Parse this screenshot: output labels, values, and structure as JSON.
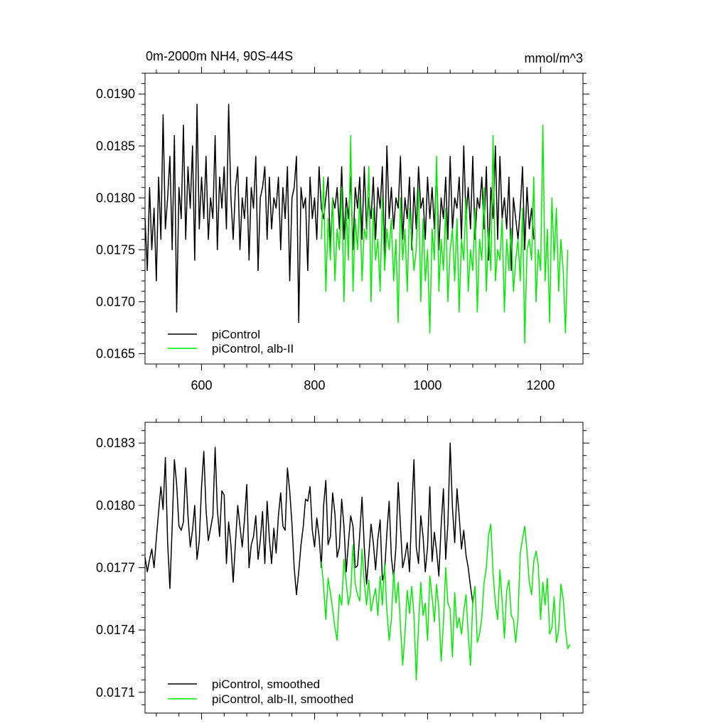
{
  "header": {
    "title": "0m-2000m NH4, 90S-44S",
    "units": "mmol/m^3"
  },
  "colors": {
    "piControl": "#000000",
    "albII": "#00ee00"
  },
  "chart_data": [
    {
      "type": "line",
      "xlim": [
        500,
        1275
      ],
      "ylim": [
        0.0164,
        0.0192
      ],
      "xticks": [
        600,
        800,
        1000,
        1200
      ],
      "xtick_labels": [
        "600",
        "800",
        "1000",
        "1200"
      ],
      "yticks": [
        0.0165,
        0.017,
        0.0175,
        0.018,
        0.0185,
        0.019
      ],
      "ytick_labels": [
        "0.0165",
        "0.0170",
        "0.0175",
        "0.0180",
        "0.0185",
        "0.0190"
      ],
      "legend": {
        "position": "bottom-left"
      },
      "series": [
        {
          "name": "piControl",
          "color": "#000000",
          "x_start": 500,
          "x_step": 4,
          "values": [
            0.0178,
            0.0173,
            0.0181,
            0.0175,
            0.0179,
            0.0172,
            0.0182,
            0.0176,
            0.0188,
            0.0177,
            0.018,
            0.0184,
            0.0175,
            0.0186,
            0.0169,
            0.0181,
            0.0178,
            0.0187,
            0.0176,
            0.0183,
            0.0179,
            0.0185,
            0.0174,
            0.0189,
            0.0177,
            0.0182,
            0.0178,
            0.0184,
            0.0176,
            0.018,
            0.0178,
            0.0186,
            0.0175,
            0.0182,
            0.0179,
            0.0183,
            0.0177,
            0.0189,
            0.018,
            0.0176,
            0.0181,
            0.0183,
            0.0175,
            0.018,
            0.0178,
            0.0182,
            0.0174,
            0.0181,
            0.0179,
            0.0184,
            0.0173,
            0.018,
            0.0181,
            0.0183,
            0.0176,
            0.0182,
            0.0177,
            0.018,
            0.0179,
            0.0182,
            0.0175,
            0.0181,
            0.0178,
            0.0183,
            0.0172,
            0.018,
            0.0181,
            0.0184,
            0.0168,
            0.0181,
            0.0179,
            0.018,
            0.0173,
            0.0182,
            0.0178,
            0.018,
            0.0176,
            0.0183,
            0.0179,
            0.0178,
            0.018,
            0.0182,
            0.0175,
            0.018,
            0.0179,
            0.0181,
            0.0177,
            0.0183,
            0.0176,
            0.018,
            0.0178,
            0.0182,
            0.0175,
            0.0181,
            0.0179,
            0.0182,
            0.0176,
            0.0183,
            0.0177,
            0.018,
            0.0178,
            0.0182,
            0.0176,
            0.0181,
            0.0179,
            0.0183,
            0.0174,
            0.0185,
            0.0178,
            0.0181,
            0.0177,
            0.018,
            0.0179,
            0.0184,
            0.0176,
            0.018,
            0.0178,
            0.0182,
            0.0175,
            0.0181,
            0.0177,
            0.0183,
            0.0179,
            0.018,
            0.0176,
            0.0182,
            0.0178,
            0.0181,
            0.0177,
            0.0183,
            0.0175,
            0.018,
            0.0178,
            0.0182,
            0.0176,
            0.0184,
            0.0177,
            0.018,
            0.0179,
            0.0182,
            0.0176,
            0.0185,
            0.0178,
            0.0181,
            0.0177,
            0.0184,
            0.0176,
            0.018,
            0.0179,
            0.0182,
            0.0177,
            0.0183,
            0.0174,
            0.0181,
            0.0178,
            0.0185,
            0.0176,
            0.0184,
            0.0178,
            0.018,
            0.0177,
            0.0182,
            0.0173,
            0.018,
            0.0178,
            0.0176,
            0.0179,
            0.0183,
            0.0175,
            0.0181,
            0.0177,
            0.0179,
            0.0176
          ]
        },
        {
          "name": "piControl, alb-II",
          "color": "#00ee00",
          "x_start": 812,
          "x_step": 4,
          "values": [
            0.0176,
            0.0182,
            0.0171,
            0.0178,
            0.0174,
            0.018,
            0.0172,
            0.0177,
            0.0175,
            0.0181,
            0.017,
            0.0179,
            0.0174,
            0.0186,
            0.0171,
            0.0178,
            0.0175,
            0.018,
            0.0172,
            0.0177,
            0.0176,
            0.0183,
            0.017,
            0.0179,
            0.0174,
            0.0176,
            0.0171,
            0.018,
            0.0173,
            0.0177,
            0.0175,
            0.0178,
            0.0172,
            0.0176,
            0.0168,
            0.018,
            0.0174,
            0.0177,
            0.0171,
            0.0179,
            0.0176,
            0.0173,
            0.0175,
            0.0181,
            0.017,
            0.0178,
            0.0172,
            0.0175,
            0.0167,
            0.0177,
            0.0174,
            0.0184,
            0.0171,
            0.0176,
            0.0173,
            0.0179,
            0.017,
            0.0175,
            0.0177,
            0.0172,
            0.0178,
            0.0169,
            0.0176,
            0.0174,
            0.018,
            0.0171,
            0.0175,
            0.0173,
            0.0179,
            0.0169,
            0.0176,
            0.0174,
            0.0181,
            0.0171,
            0.0177,
            0.0173,
            0.0186,
            0.0172,
            0.0175,
            0.0174,
            0.0178,
            0.0169,
            0.0176,
            0.0173,
            0.0177,
            0.0171,
            0.0174,
            0.0176,
            0.0172,
            0.0179,
            0.0166,
            0.0175,
            0.0176,
            0.0174,
            0.0182,
            0.017,
            0.0175,
            0.0173,
            0.0187,
            0.0172,
            0.0177,
            0.0168,
            0.018,
            0.0174,
            0.0179,
            0.0171,
            0.0176,
            0.0173,
            0.0167,
            0.0175
          ]
        }
      ]
    },
    {
      "type": "line",
      "xlim": [
        500,
        1275
      ],
      "ylim": [
        0.017,
        0.0184
      ],
      "xticks": [
        600,
        800,
        1000,
        1200
      ],
      "yticks": [
        0.0171,
        0.0174,
        0.0177,
        0.018,
        0.0183
      ],
      "ytick_labels": [
        "0.0171",
        "0.0174",
        "0.0177",
        "0.0180",
        "0.0183"
      ],
      "legend": {
        "position": "bottom-left"
      },
      "series": [
        {
          "name": "piControl, smoothed",
          "color": "#000000",
          "x_start": 500,
          "x_step": 4,
          "values": [
            0.01775,
            0.01768,
            0.01774,
            0.01779,
            0.0177,
            0.01784,
            0.01797,
            0.01809,
            0.01798,
            0.01823,
            0.01782,
            0.0176,
            0.0179,
            0.01822,
            0.0181,
            0.0179,
            0.01788,
            0.01792,
            0.01818,
            0.01795,
            0.0178,
            0.01788,
            0.018,
            0.01774,
            0.01783,
            0.01809,
            0.01826,
            0.01798,
            0.01783,
            0.01789,
            0.01795,
            0.01828,
            0.01798,
            0.01785,
            0.01807,
            0.01805,
            0.01772,
            0.01792,
            0.01781,
            0.01763,
            0.01782,
            0.018,
            0.0179,
            0.0178,
            0.01793,
            0.0181,
            0.0177,
            0.01781,
            0.01785,
            0.01795,
            0.01774,
            0.01783,
            0.01797,
            0.01772,
            0.01802,
            0.01784,
            0.01772,
            0.01789,
            0.01777,
            0.01795,
            0.01806,
            0.0179,
            0.01788,
            0.01818,
            0.01807,
            0.01791,
            0.0177,
            0.01757,
            0.01768,
            0.01781,
            0.0179,
            0.01803,
            0.01802,
            0.01809,
            0.01788,
            0.0178,
            0.01794,
            0.01785,
            0.0177,
            0.018,
            0.01812,
            0.01781,
            0.01785,
            0.01806,
            0.01796,
            0.01775,
            0.0178,
            0.01803,
            0.0179,
            0.01768,
            0.01782,
            0.01795,
            0.0179,
            0.0177,
            0.01771,
            0.01786,
            0.01804,
            0.0178,
            0.01762,
            0.01776,
            0.01791,
            0.01782,
            0.01769,
            0.01784,
            0.01793,
            0.01764,
            0.01768,
            0.01787,
            0.01802,
            0.01775,
            0.01765,
            0.0178,
            0.01811,
            0.0179,
            0.0177,
            0.01775,
            0.01782,
            0.01768,
            0.01798,
            0.01822,
            0.0178,
            0.01772,
            0.01795,
            0.01785,
            0.01768,
            0.0178,
            0.01809,
            0.01773,
            0.01787,
            0.01778,
            0.01766,
            0.0179,
            0.01808,
            0.01774,
            0.01791,
            0.0183,
            0.01799,
            0.01782,
            0.01808,
            0.01795,
            0.01779,
            0.01788,
            0.01776,
            0.0177,
            0.01761,
            0.01753,
            0.01761
          ]
        },
        {
          "name": "piControl, alb-II, smoothed",
          "color": "#00ee00",
          "x_start": 812,
          "x_step": 4,
          "values": [
            0.01773,
            0.01761,
            0.01745,
            0.01765,
            0.01758,
            0.0175,
            0.01741,
            0.01735,
            0.01757,
            0.01752,
            0.01774,
            0.01763,
            0.01752,
            0.01758,
            0.01781,
            0.01762,
            0.01757,
            0.01754,
            0.01779,
            0.01763,
            0.01752,
            0.01764,
            0.01749,
            0.01755,
            0.0176,
            0.01747,
            0.01766,
            0.01752,
            0.01772,
            0.01749,
            0.01735,
            0.01745,
            0.01768,
            0.01753,
            0.01763,
            0.01742,
            0.01723,
            0.01738,
            0.01759,
            0.01748,
            0.01761,
            0.01747,
            0.01716,
            0.01742,
            0.01763,
            0.01747,
            0.01753,
            0.01735,
            0.01766,
            0.01756,
            0.01744,
            0.01762,
            0.0175,
            0.01725,
            0.01743,
            0.0177,
            0.01753,
            0.0175,
            0.01727,
            0.01758,
            0.01741,
            0.01746,
            0.01738,
            0.01749,
            0.01757,
            0.01738,
            0.01723,
            0.01754,
            0.01761,
            0.01734,
            0.01738,
            0.01746,
            0.01763,
            0.0177,
            0.01786,
            0.01791,
            0.01767,
            0.01753,
            0.01745,
            0.01769,
            0.01754,
            0.01736,
            0.01759,
            0.01764,
            0.01747,
            0.01745,
            0.01734,
            0.01746,
            0.01777,
            0.01784,
            0.0179,
            0.01778,
            0.01763,
            0.01757,
            0.01773,
            0.01778,
            0.01771,
            0.01745,
            0.01763,
            0.01752,
            0.01765,
            0.01738,
            0.01741,
            0.01756,
            0.01734,
            0.0174,
            0.01762,
            0.01755,
            0.0174,
            0.01731,
            0.01733
          ]
        }
      ]
    }
  ]
}
